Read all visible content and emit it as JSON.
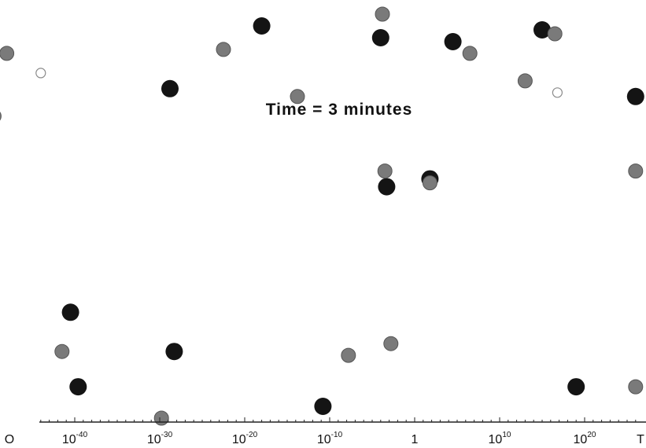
{
  "chart_data": {
    "type": "scatter",
    "title": "Time = 3 minutes",
    "xlabel": "",
    "ylabel": "",
    "x_scale": "log",
    "x_tick_labels": [
      {
        "base": "O",
        "exp": ""
      },
      {
        "base": "10",
        "exp": "-40"
      },
      {
        "base": "10",
        "exp": "-30"
      },
      {
        "base": "10",
        "exp": "-20"
      },
      {
        "base": "10",
        "exp": "-10"
      },
      {
        "base": "1",
        "exp": ""
      },
      {
        "base": "10",
        "exp": "10"
      },
      {
        "base": "10",
        "exp": "20"
      },
      {
        "base": "T",
        "exp": ""
      }
    ],
    "x_tick_exponents": [
      -40,
      -30,
      -20,
      -10,
      0,
      10,
      20
    ],
    "legend": "none",
    "grid": false,
    "series": [
      {
        "color": "#141414",
        "points": [
          {
            "x": -28.8,
            "y": 0.83
          },
          {
            "x": -4.0,
            "y": 0.96
          },
          {
            "x": 26.0,
            "y": 0.81
          },
          {
            "x": -3.3,
            "y": 0.58
          },
          {
            "x": 1.8,
            "y": 0.6
          },
          {
            "x": -40.5,
            "y": 0.26
          },
          {
            "x": -28.3,
            "y": 0.16
          },
          {
            "x": -39.6,
            "y": 0.07
          },
          {
            "x": -10.8,
            "y": 0.02
          },
          {
            "x": 19.0,
            "y": 0.07
          },
          {
            "x": -18.0,
            "y": 0.99
          },
          {
            "x": 4.5,
            "y": 0.95
          },
          {
            "x": 15.0,
            "y": 0.98
          }
        ]
      },
      {
        "color": "#7a7a7a",
        "points": [
          {
            "x": -22.5,
            "y": 0.93
          },
          {
            "x": 6.5,
            "y": 0.92
          },
          {
            "x": 16.5,
            "y": 0.97
          },
          {
            "x": -13.8,
            "y": 0.81
          },
          {
            "x": 13.0,
            "y": 0.85
          },
          {
            "x": -3.5,
            "y": 0.62
          },
          {
            "x": 1.8,
            "y": 0.59
          },
          {
            "x": -49.5,
            "y": 0.76
          },
          {
            "x": 26.0,
            "y": 0.62
          },
          {
            "x": 26.0,
            "y": 0.07
          },
          {
            "x": -7.8,
            "y": 0.15
          },
          {
            "x": -29.8,
            "y": -0.01
          },
          {
            "x": -48.0,
            "y": 0.92
          },
          {
            "x": -41.5,
            "y": 0.16
          },
          {
            "x": -3.8,
            "y": 1.02
          },
          {
            "x": -2.8,
            "y": 0.18
          }
        ]
      },
      {
        "color": "#ffffff",
        "points": [
          {
            "x": -44.0,
            "y": 0.87
          },
          {
            "x": 16.8,
            "y": 0.82
          }
        ]
      }
    ]
  }
}
